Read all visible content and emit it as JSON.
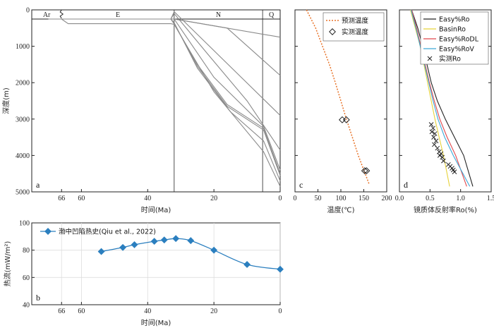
{
  "chart_data": [
    {
      "panel": "a",
      "type": "line",
      "xlabel": "时间(Ma)",
      "ylabel": "深度(m)",
      "xlim": [
        75,
        0
      ],
      "ylim": [
        5000,
        0
      ],
      "xticks": [
        66,
        60,
        40,
        20,
        0
      ],
      "yticks": [
        0,
        1000,
        2000,
        3000,
        4000,
        5000
      ],
      "strata": [
        "Ar",
        "E",
        "N",
        "Q"
      ],
      "strata_bounds": [
        75,
        66,
        32,
        5.3,
        0
      ],
      "series": [
        {
          "x": [
            70,
            64,
            33,
            32,
            0
          ],
          "y": [
            0,
            0,
            0,
            0,
            750
          ]
        },
        {
          "x": [
            69,
            62,
            33,
            32,
            16,
            0
          ],
          "y": [
            0,
            0,
            0,
            0,
            500,
            1800
          ]
        },
        {
          "x": [
            68,
            61,
            33,
            32,
            0
          ],
          "y": [
            0,
            0,
            0,
            50,
            2900
          ]
        },
        {
          "x": [
            67,
            60,
            33,
            32,
            22,
            10,
            0
          ],
          "y": [
            0,
            0,
            0,
            100,
            1200,
            2500,
            3850
          ]
        },
        {
          "x": [
            66,
            65,
            33,
            32,
            20,
            5,
            0
          ],
          "y": [
            0,
            0,
            0,
            250,
            1850,
            3200,
            4400
          ]
        },
        {
          "x": [
            65,
            64,
            33,
            32,
            25,
            15,
            5,
            0
          ],
          "y": [
            0,
            0,
            0,
            350,
            1600,
            2800,
            3600,
            4700
          ]
        },
        {
          "x": [
            64,
            63,
            33,
            32,
            25,
            16,
            5,
            0
          ],
          "y": [
            0,
            0,
            0,
            370,
            1550,
            2650,
            3300,
            4550
          ]
        },
        {
          "x": [
            63,
            62,
            33,
            32,
            25,
            16,
            5,
            0
          ],
          "y": [
            0,
            0,
            0,
            390,
            1500,
            2600,
            3250,
            4500
          ]
        },
        {
          "x": [
            66,
            64,
            33,
            32,
            20,
            5,
            0
          ],
          "y": [
            0,
            380,
            380,
            400,
            2250,
            3900,
            4850
          ]
        }
      ]
    },
    {
      "panel": "b",
      "type": "line",
      "xlabel": "时间(Ma)",
      "ylabel": "热流(mW/m²)",
      "xlim": [
        75,
        0
      ],
      "ylim": [
        40,
        100
      ],
      "xticks": [
        66,
        60,
        40,
        20,
        0
      ],
      "yticks": [
        40,
        60,
        80,
        100
      ],
      "series": [
        {
          "name": "渤中凹陷热史(Qiu et al., 2022)",
          "color": "#2b7fbf",
          "x": [
            54,
            47.5,
            44,
            38,
            35,
            31.5,
            27,
            20,
            10,
            0
          ],
          "y": [
            79,
            82,
            84,
            86.5,
            87.5,
            88.5,
            87,
            80,
            69.5,
            66
          ]
        }
      ]
    },
    {
      "panel": "c",
      "type": "scatter",
      "xlabel": "温度(℃)",
      "ylabel": "",
      "xlim": [
        0,
        200
      ],
      "ylim": [
        5000,
        0
      ],
      "xticks": [
        0,
        50,
        100,
        150,
        200
      ],
      "series": [
        {
          "name": "预测温度",
          "type": "line",
          "color": "#e8742a",
          "x": [
            25,
            45,
            60,
            75,
            88,
            100,
            112,
            125,
            138,
            150,
            162
          ],
          "y": [
            0,
            500,
            1000,
            1500,
            2000,
            2500,
            3000,
            3500,
            4000,
            4400,
            4800
          ]
        },
        {
          "name": "实测温度",
          "type": "scatter",
          "x": [
            103,
            112,
            152,
            156
          ],
          "y": [
            3020,
            3020,
            4420,
            4420
          ]
        }
      ]
    },
    {
      "panel": "d",
      "type": "line",
      "xlabel": "镜质体反射率Ro(%)",
      "ylabel": "",
      "xlim": [
        0,
        1.5
      ],
      "ylim": [
        5000,
        0
      ],
      "xticks": [
        0,
        0.5,
        1.0,
        1.5
      ],
      "series": [
        {
          "name": "Easy%Ro",
          "color": "#222222",
          "x": [
            0.2,
            0.3,
            0.38,
            0.45,
            0.52,
            0.62,
            0.75,
            0.9,
            1.05,
            1.2
          ],
          "y": [
            0,
            500,
            1000,
            1500,
            2000,
            2500,
            3000,
            3500,
            4000,
            4850
          ]
        },
        {
          "name": "BasinRo",
          "color": "#e6d23a",
          "x": [
            0.18,
            0.26,
            0.34,
            0.4,
            0.46,
            0.52,
            0.58,
            0.65,
            0.72,
            0.82
          ],
          "y": [
            0,
            500,
            1000,
            1500,
            2000,
            2500,
            3000,
            3500,
            4000,
            4850
          ]
        },
        {
          "name": "Easy%RoDL",
          "color": "#e0474c",
          "x": [
            0.2,
            0.28,
            0.35,
            0.42,
            0.49,
            0.57,
            0.66,
            0.78,
            0.92,
            1.1
          ],
          "y": [
            0,
            500,
            1000,
            1500,
            2000,
            2500,
            3000,
            3500,
            4000,
            4850
          ]
        },
        {
          "name": "Easy%RoV",
          "color": "#3da9d8",
          "x": [
            0.19,
            0.27,
            0.34,
            0.41,
            0.48,
            0.55,
            0.63,
            0.74,
            0.88,
            1.15
          ],
          "y": [
            0,
            500,
            1000,
            1500,
            2000,
            2500,
            3000,
            3500,
            4000,
            4850
          ]
        },
        {
          "name": "实测Ro",
          "type": "scatter",
          "x": [
            0.52,
            0.55,
            0.53,
            0.58,
            0.56,
            0.6,
            0.57,
            0.62,
            0.65,
            0.68,
            0.66,
            0.7,
            0.72,
            0.8,
            0.83,
            0.86,
            0.88,
            0.9
          ],
          "y": [
            3150,
            3250,
            3350,
            3400,
            3500,
            3600,
            3700,
            3800,
            3900,
            3950,
            4000,
            4050,
            4150,
            4250,
            4300,
            4350,
            4400,
            4450
          ]
        }
      ]
    }
  ]
}
